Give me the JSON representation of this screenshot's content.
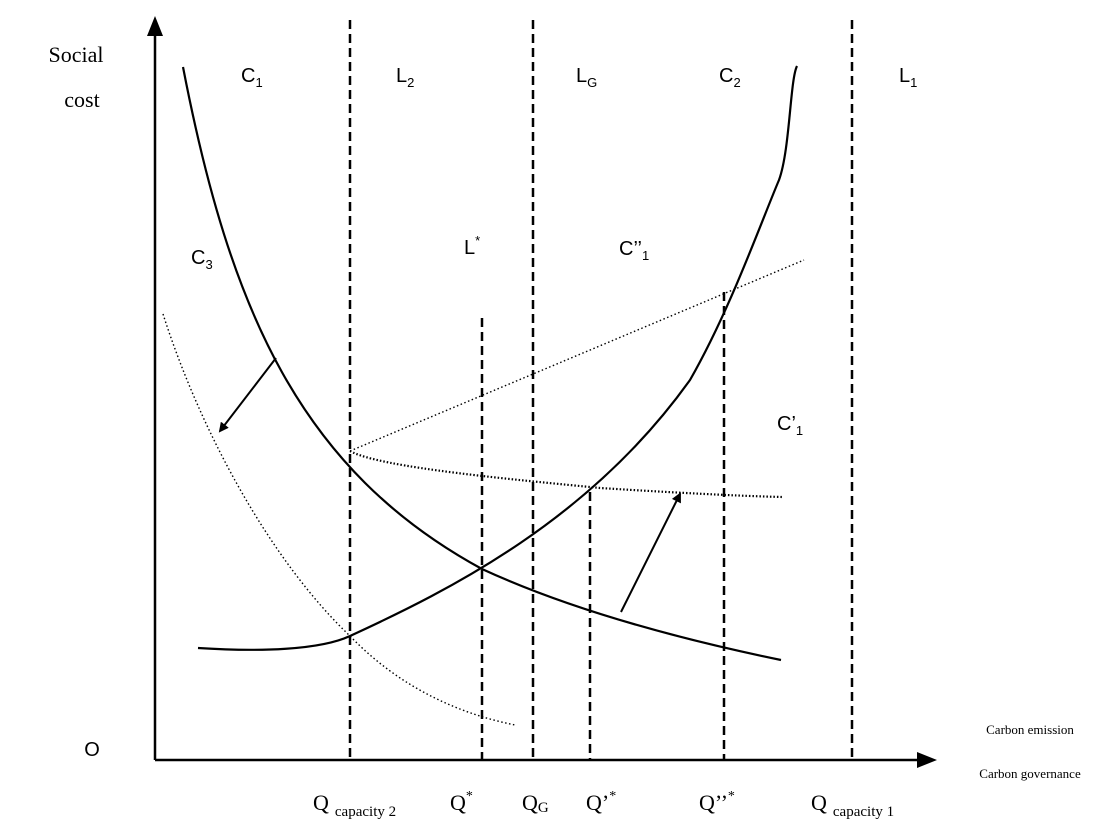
{
  "axes": {
    "y_label_line1": "Social",
    "y_label_line2": "cost",
    "origin": "O",
    "x_label_line1": "Carbon emission",
    "x_label_line2": "Carbon governance"
  },
  "region_labels": {
    "c1": {
      "base": "C",
      "sub": "1"
    },
    "l2": {
      "base": "L",
      "sub": "2"
    },
    "lg": {
      "base": "L",
      "sub": "G"
    },
    "c2": {
      "base": "C",
      "sub": "2"
    },
    "l1": {
      "base": "L",
      "sub": "1"
    },
    "c3": {
      "base": "C",
      "sub": "3"
    },
    "lstar": {
      "base": "L",
      "sup": "*"
    },
    "c_double_prime_1": {
      "base": "C’’",
      "sub": "1"
    },
    "c_prime_1": {
      "base": "C’",
      "sub": "1"
    }
  },
  "x_ticks": {
    "q_capacity_2": {
      "base": "Q",
      "sub": "capacity 2"
    },
    "q_star": {
      "base": "Q",
      "sup": "*"
    },
    "q_g": {
      "base": "Q",
      "sub": "G"
    },
    "q_prime_star": {
      "base": "Q’",
      "sup": "*"
    },
    "q_double_prime_star": {
      "base": "Q’’",
      "sup": "*"
    },
    "q_capacity_1": {
      "base": "Q",
      "sub": "capacity 1"
    }
  }
}
